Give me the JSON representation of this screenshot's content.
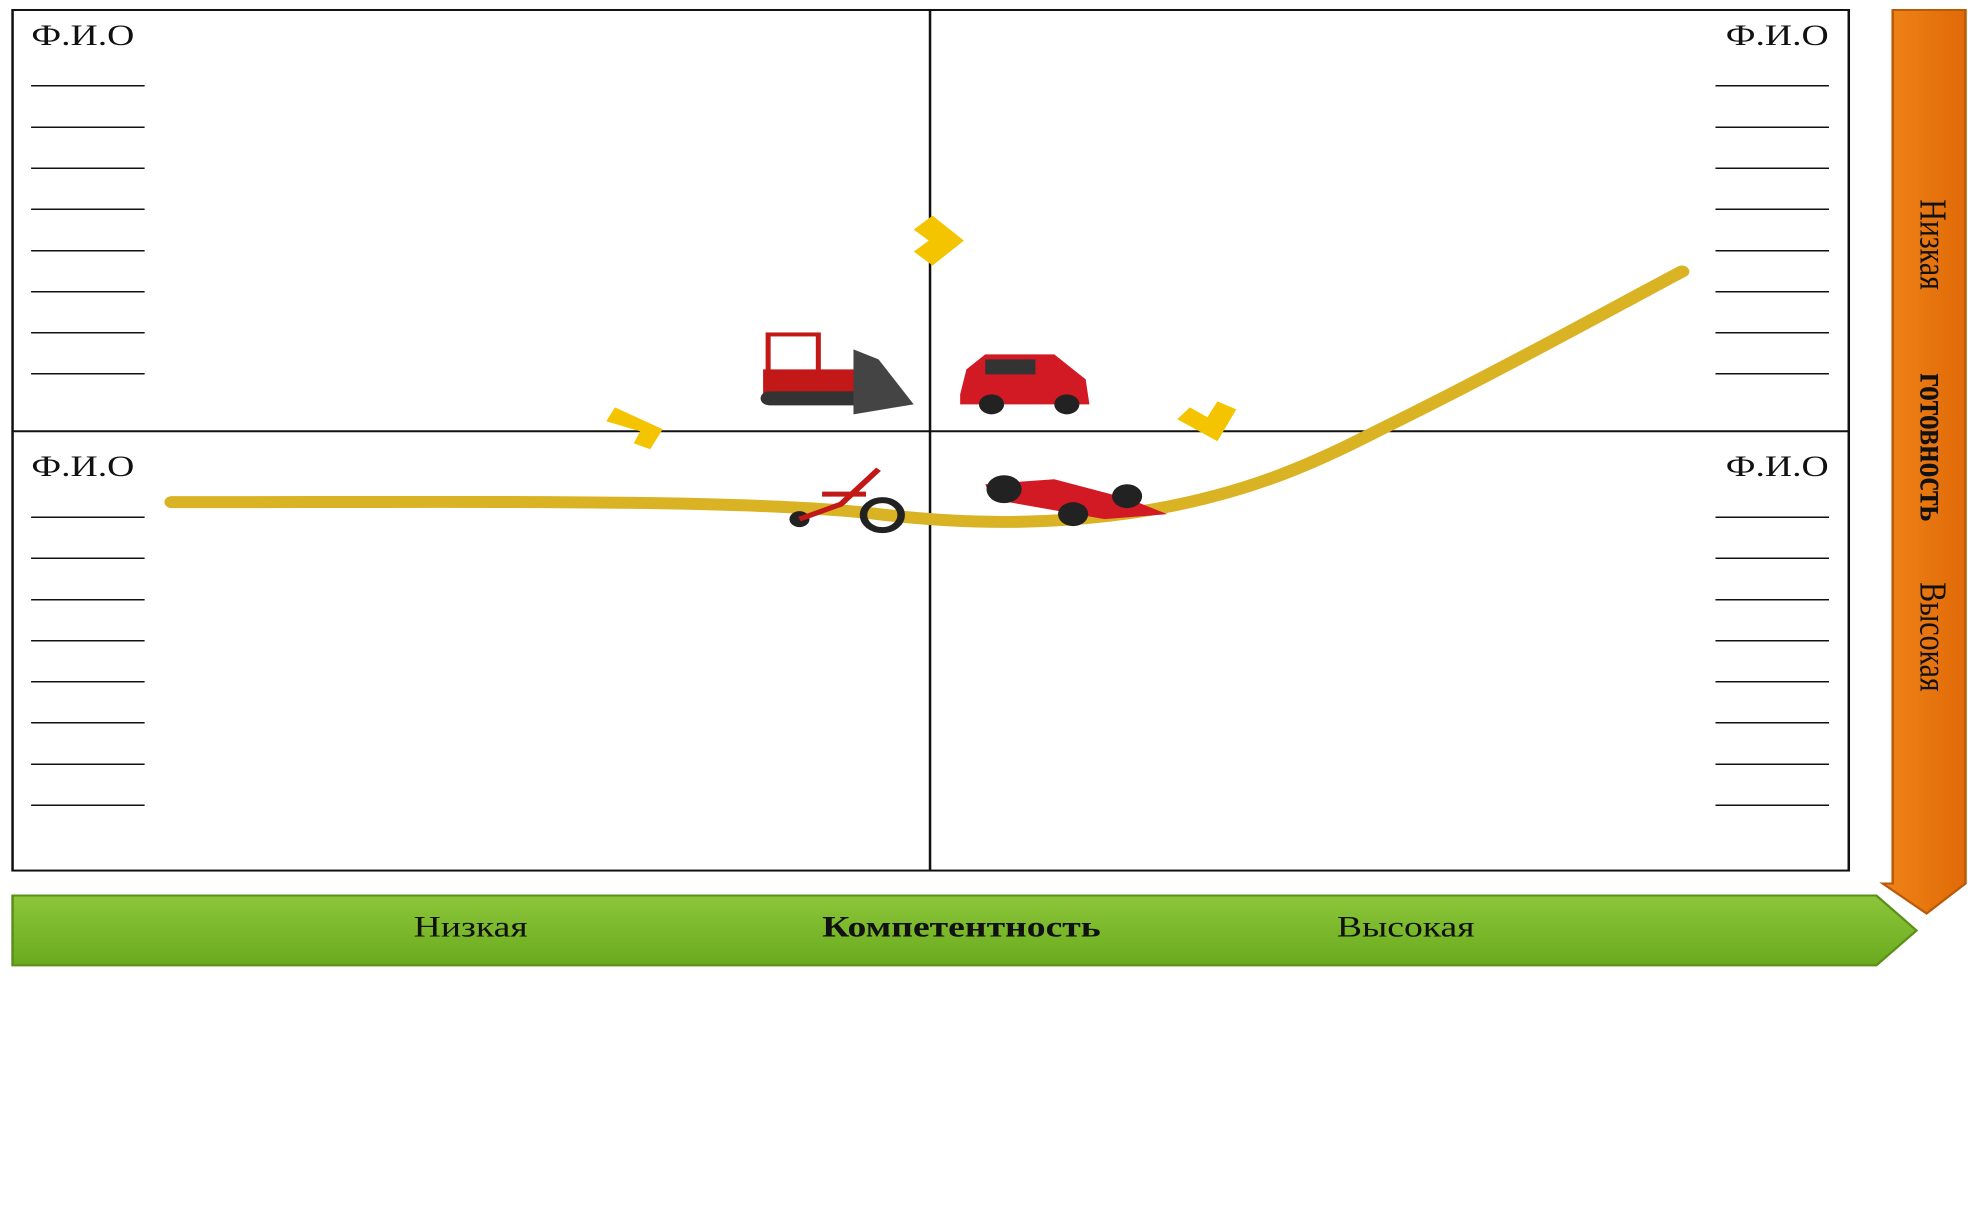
{
  "quadrants": [
    {
      "title": "Ф.И.О",
      "lines": [
        "______",
        "______",
        "______",
        "______",
        "______",
        "______",
        "______",
        "______"
      ]
    },
    {
      "title": "Ф.И.О",
      "lines": [
        "______",
        "______",
        "______",
        "______",
        "______",
        "______",
        "______",
        "______"
      ]
    },
    {
      "title": "Ф.И.О",
      "lines": [
        "______",
        "______",
        "______",
        "______",
        "______",
        "______",
        "______",
        "______"
      ]
    },
    {
      "title": "Ф.И.О",
      "lines": [
        "______",
        "______",
        "______",
        "______",
        "______",
        "______",
        "______",
        "______"
      ]
    }
  ],
  "x_axis": {
    "low": "Низкая",
    "label": "Компетентность",
    "high": "Высокая"
  },
  "y_axis": {
    "low": "Низкая",
    "label": "готовность",
    "high": "Высокая"
  }
}
